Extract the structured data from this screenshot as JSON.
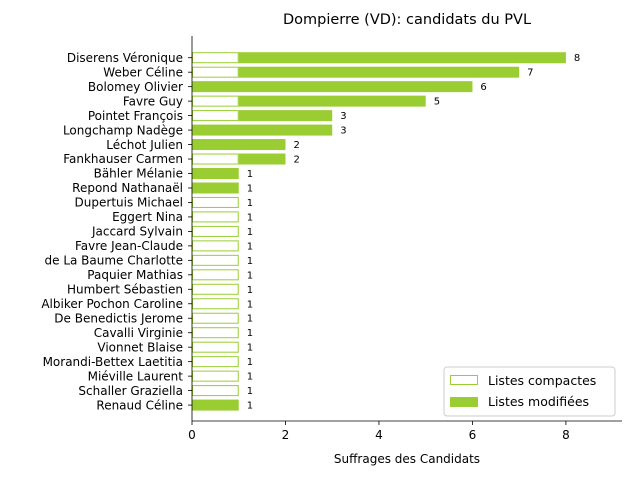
{
  "colors": {
    "accent": "#9acd32",
    "axis": "#000000",
    "legend_border": "#cccccc"
  },
  "chart_data": {
    "type": "bar",
    "orientation": "horizontal",
    "stacked": true,
    "title": "Dompierre (VD): candidats du PVL",
    "xlabel": "Suffrages des Candidats",
    "ylabel": "",
    "xlim": [
      0,
      9.2
    ],
    "xticks": [
      0,
      2,
      4,
      6,
      8
    ],
    "grid": false,
    "legend_position": "bottom-right",
    "categories": [
      "Diserens Véronique",
      "Weber Céline",
      "Bolomey Olivier",
      "Favre Guy",
      "Pointet François",
      "Longchamp Nadège",
      "Léchot Julien",
      "Fankhauser Carmen",
      "Bähler Mélanie",
      "Repond Nathanaël",
      "Dupertuis Michael",
      "Eggert Nina",
      "Jaccard Sylvain",
      "Favre Jean-Claude",
      "de La Baume Charlotte",
      "Paquier Mathias",
      "Humbert Sébastien",
      "Albiker Pochon Caroline",
      "De Benedictis Jerome",
      "Cavalli Virginie",
      "Vionnet Blaise",
      "Morandi-Bettex Laetitia",
      "Miéville Laurent",
      "Schaller Graziella",
      "Renaud Céline"
    ],
    "series": [
      {
        "name": "Listes compactes",
        "style": "outline",
        "values": [
          1,
          1,
          0,
          1,
          1,
          0,
          0,
          1,
          0,
          0,
          1,
          1,
          1,
          1,
          1,
          1,
          1,
          1,
          1,
          1,
          1,
          1,
          1,
          1,
          0
        ]
      },
      {
        "name": "Listes modifiées",
        "style": "filled",
        "values": [
          7,
          6,
          6,
          4,
          2,
          3,
          2,
          1,
          1,
          1,
          0,
          0,
          0,
          0,
          0,
          0,
          0,
          0,
          0,
          0,
          0,
          0,
          0,
          0,
          1
        ]
      }
    ],
    "totals": [
      "8",
      "7",
      "6",
      "5",
      "3",
      "3",
      "2",
      "2",
      "1",
      "1",
      "1",
      "1",
      "1",
      "1",
      "1",
      "1",
      "1",
      "1",
      "1",
      "1",
      "1",
      "1",
      "1",
      "1",
      "1"
    ]
  }
}
